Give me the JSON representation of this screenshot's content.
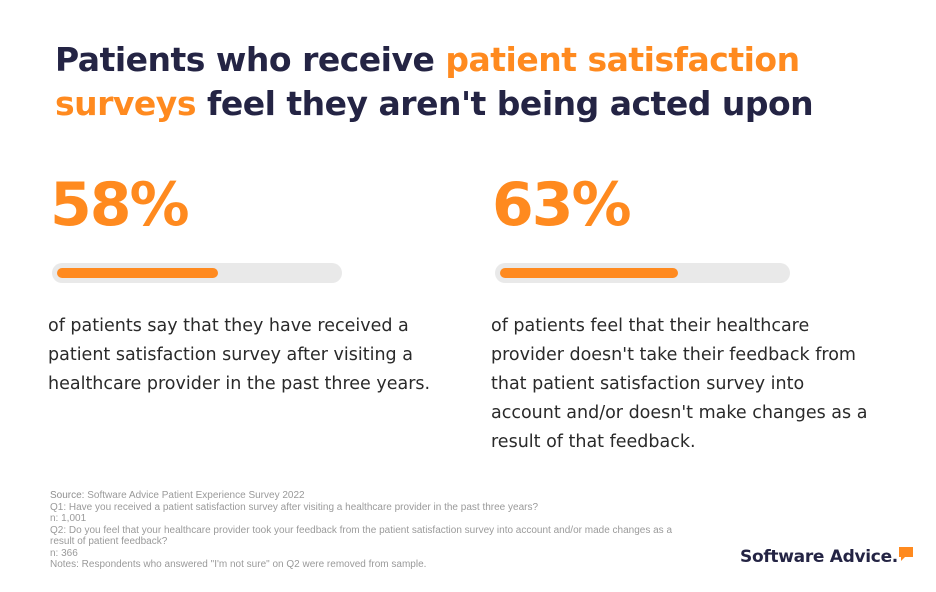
{
  "title": {
    "part1": "Patients who receive ",
    "highlight": "patient satisfaction surveys",
    "part2": " feel they aren't being acted upon"
  },
  "colors": {
    "accent": "#ff8a1f",
    "heading": "#242444",
    "track": "#e9e9e9"
  },
  "chart_data": {
    "type": "bar",
    "title": "Patients who receive patient satisfaction surveys feel they aren't being acted upon",
    "unit": "%",
    "categories": [
      "of patients say that they have received a patient satisfaction survey after visiting a healthcare provider in the past three years.",
      "of patients feel that their healthcare provider doesn't take their feedback from that patient satisfaction survey into account and/or doesn't make changes as a result of that feedback."
    ],
    "values": [
      58,
      63
    ],
    "labels": [
      "58%",
      "63%"
    ],
    "ylim": [
      0,
      100
    ]
  },
  "footnote": {
    "source_label": "Source:",
    "source_text": " Software Advice Patient Experience Survey 2022",
    "q1": "Q1: Have you received a patient satisfaction survey after visiting a healthcare provider in the past three years?",
    "n1": "n: 1,001",
    "q2": "Q2: Do you feel that your healthcare provider took your feedback from the patient satisfaction survey into account and/or made changes as a result of patient feedback?",
    "n2": "n: 366",
    "notes": "Notes: Respondents who answered \"I'm not sure\" on Q2 were removed from sample."
  },
  "logo": {
    "text": "Software Advice."
  }
}
